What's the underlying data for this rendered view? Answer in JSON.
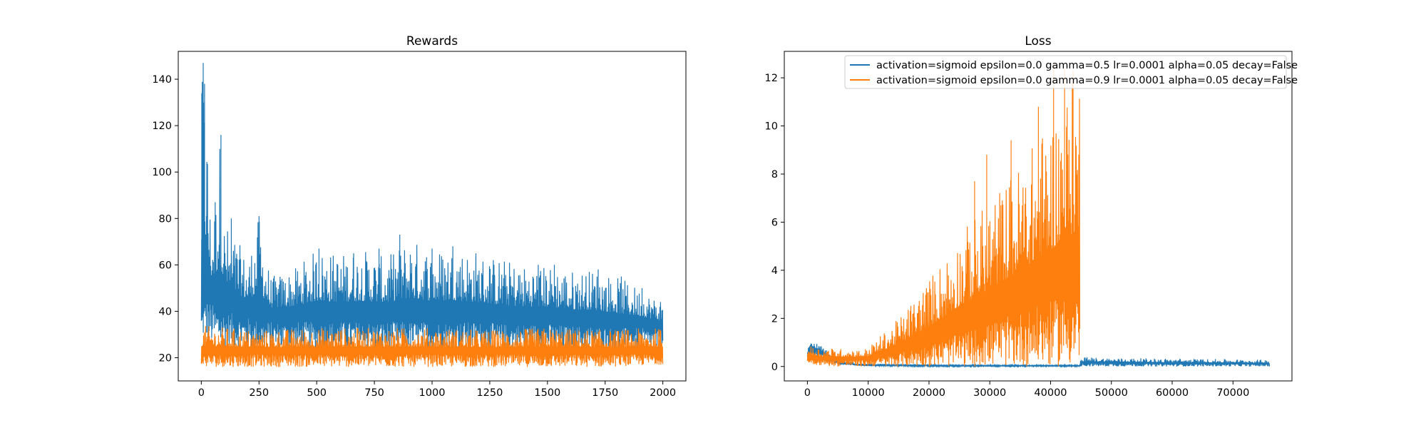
{
  "colors": {
    "blue": "#1f77b4",
    "orange": "#ff7f0e"
  },
  "legend": {
    "placement": "upper-right",
    "entries": [
      "activation=sigmoid epsilon=0.0 gamma=0.5 lr=0.0001 alpha=0.05 decay=False",
      "activation=sigmoid epsilon=0.0 gamma=0.9 lr=0.0001 alpha=0.05 decay=False"
    ]
  },
  "chart_data": [
    {
      "type": "line",
      "title": "Rewards",
      "xlabel": "",
      "ylabel": "",
      "grid": false,
      "xlim": [
        -100,
        2100
      ],
      "ylim": [
        10,
        152
      ],
      "xticks": [
        0,
        250,
        500,
        750,
        1000,
        1250,
        1500,
        1750,
        2000
      ],
      "yticks": [
        20,
        40,
        60,
        80,
        100,
        120,
        140
      ],
      "series": [
        {
          "color": "blue",
          "envelope_x": [
            0,
            10,
            20,
            40,
            60,
            80,
            100,
            130,
            160,
            200,
            250,
            300,
            400,
            500,
            600,
            700,
            800,
            900,
            1000,
            1100,
            1200,
            1300,
            1400,
            1500,
            1600,
            1700,
            1800,
            1900,
            2000
          ],
          "envelope_min": [
            30,
            28,
            27,
            26,
            25,
            25,
            24,
            24,
            24,
            23,
            23,
            23,
            23,
            23,
            23,
            23,
            23,
            23,
            23,
            23,
            23,
            23,
            23,
            23,
            23,
            23,
            23,
            23,
            23
          ],
          "envelope_max": [
            134,
            147,
            138,
            81,
            87,
            116,
            80,
            73,
            70,
            62,
            81,
            55,
            58,
            67,
            65,
            67,
            63,
            72,
            67,
            68,
            65,
            63,
            60,
            60,
            58,
            58,
            55,
            50,
            44
          ],
          "baseline": [
            40,
            45,
            48,
            46,
            44,
            43,
            42,
            41,
            40,
            39,
            38,
            37,
            37,
            37,
            37,
            37,
            37,
            37,
            37,
            37,
            37,
            36,
            36,
            36,
            35,
            35,
            34,
            34,
            33
          ],
          "peaks": [
            [
              2,
              134
            ],
            [
              8,
              147
            ],
            [
              14,
              138
            ],
            [
              22,
              81
            ],
            [
              60,
              87
            ],
            [
              85,
              116
            ],
            [
              130,
              80
            ],
            [
              250,
              81
            ],
            [
              510,
              67
            ],
            [
              660,
              65
            ],
            [
              770,
              67
            ],
            [
              860,
              73
            ],
            [
              1000,
              67
            ],
            [
              1090,
              68
            ],
            [
              1190,
              65
            ],
            [
              1340,
              55
            ],
            [
              1460,
              60
            ],
            [
              1530,
              60
            ],
            [
              1720,
              58
            ],
            [
              1820,
              55
            ],
            [
              1910,
              50
            ],
            [
              1990,
              44
            ]
          ]
        },
        {
          "color": "orange",
          "envelope_x": [
            0,
            250,
            500,
            750,
            1000,
            1250,
            1500,
            1750,
            2000
          ],
          "envelope_min": [
            16,
            16,
            16,
            16,
            16,
            16,
            16,
            16,
            17
          ],
          "envelope_max": [
            34,
            32,
            33,
            33,
            33,
            32,
            33,
            32,
            33
          ],
          "baseline": [
            22,
            22,
            22,
            22,
            22,
            22,
            22,
            22,
            22
          ],
          "peaks": []
        }
      ]
    },
    {
      "type": "line",
      "title": "Loss",
      "xlabel": "",
      "ylabel": "",
      "grid": false,
      "xlim": [
        -3800,
        79700
      ],
      "ylim": [
        -0.6,
        13.1
      ],
      "xticks": [
        0,
        10000,
        20000,
        30000,
        40000,
        50000,
        60000,
        70000
      ],
      "yticks": [
        0,
        2,
        4,
        6,
        8,
        10,
        12
      ],
      "series": [
        {
          "color": "blue",
          "envelope_x": [
            0,
            500,
            2000,
            5000,
            9000,
            20000,
            30000,
            44800,
            45000,
            50000,
            60000,
            70000,
            76000
          ],
          "envelope_min": [
            0.2,
            0.5,
            0.3,
            0.05,
            0.02,
            0.0,
            0.0,
            0.0,
            0.0,
            0.0,
            0.0,
            0.0,
            0.0
          ],
          "envelope_max": [
            0.8,
            1.05,
            0.9,
            0.3,
            0.12,
            0.08,
            0.06,
            0.06,
            0.4,
            0.35,
            0.33,
            0.3,
            0.28
          ],
          "baseline": [
            0.5,
            0.8,
            0.6,
            0.15,
            0.06,
            0.03,
            0.03,
            0.03,
            0.15,
            0.15,
            0.12,
            0.12,
            0.1
          ],
          "peaks": []
        },
        {
          "color": "orange",
          "envelope_x": [
            0,
            2000,
            5000,
            9000,
            10000,
            15000,
            20000,
            25000,
            30000,
            35000,
            40000,
            44800
          ],
          "envelope_min": [
            0.1,
            0.05,
            0.0,
            0.0,
            0.0,
            0.0,
            0.0,
            0.0,
            0.0,
            0.0,
            0.0,
            0.0
          ],
          "envelope_max": [
            0.9,
            0.8,
            0.75,
            0.7,
            0.8,
            2.0,
            3.7,
            5.5,
            7.0,
            8.5,
            10.4,
            12.5
          ],
          "baseline": [
            0.4,
            0.3,
            0.3,
            0.3,
            0.3,
            0.6,
            1.0,
            1.5,
            2.0,
            2.5,
            3.0,
            3.5
          ],
          "peaks": [
            [
              27500,
              7.7
            ],
            [
              29500,
              8.8
            ],
            [
              33500,
              9.4
            ],
            [
              38000,
              10.8
            ],
            [
              40500,
              12.6
            ],
            [
              42300,
              12.4
            ],
            [
              43700,
              12.3
            ]
          ]
        }
      ]
    }
  ]
}
